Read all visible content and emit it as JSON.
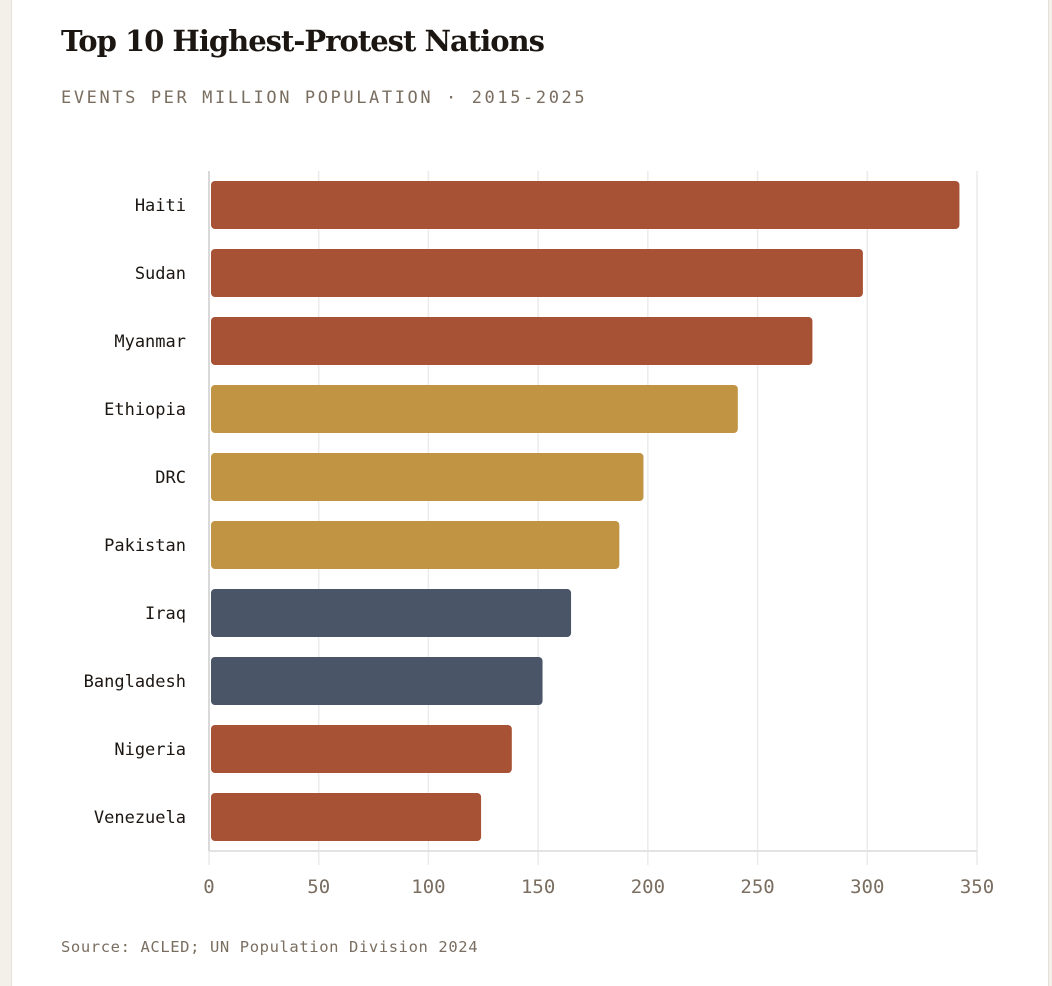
{
  "chart_data": {
    "type": "bar",
    "orientation": "horizontal",
    "title": "Top 10 Highest-Protest Nations",
    "subtitle": "EVENTS PER MILLION POPULATION · 2015-2025",
    "source": "Source: ACLED; UN Population Division 2024",
    "xlabel": "",
    "ylabel": "",
    "xlim": [
      0,
      350
    ],
    "xticks": [
      0,
      50,
      100,
      150,
      200,
      250,
      300,
      350
    ],
    "grid": "vertical",
    "categories": [
      "Haiti",
      "Sudan",
      "Myanmar",
      "Ethiopia",
      "DRC",
      "Pakistan",
      "Iraq",
      "Bangladesh",
      "Nigeria",
      "Venezuela"
    ],
    "values": [
      342,
      298,
      275,
      241,
      198,
      187,
      165,
      152,
      138,
      124
    ],
    "bar_color_groups": [
      "rust",
      "rust",
      "rust",
      "gold",
      "gold",
      "gold",
      "slate",
      "slate",
      "rust",
      "rust"
    ],
    "colors": {
      "rust": "#A85235",
      "gold": "#C19443",
      "slate": "#4A5568"
    }
  }
}
